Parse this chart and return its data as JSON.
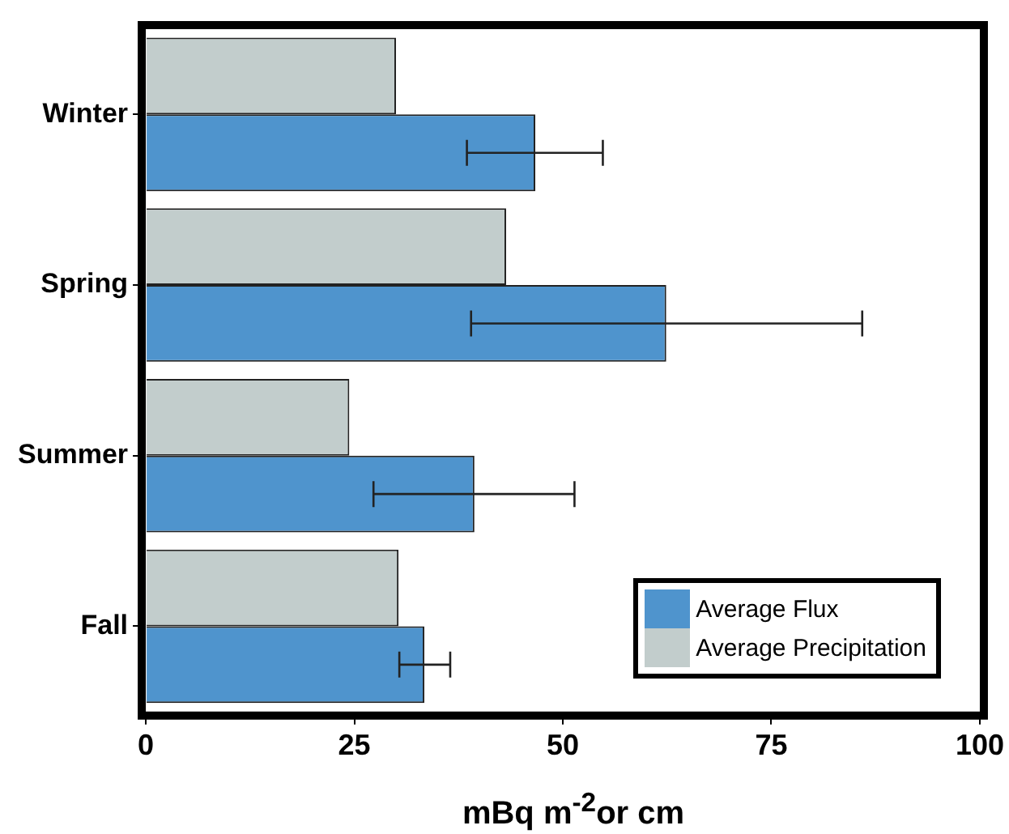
{
  "chart_data": {
    "type": "bar",
    "orientation": "horizontal",
    "xlabel": "mBq m$^{-2}$or cm",
    "categories": [
      "Winter",
      "Spring",
      "Summer",
      "Fall"
    ],
    "series": [
      {
        "name": "Average Flux",
        "color": "#4f94cd",
        "values": [
          46.7,
          62.4,
          39.4,
          33.4
        ],
        "errors": [
          [
            38.5,
            54.8
          ],
          [
            39.0,
            85.9
          ],
          [
            27.3,
            51.4
          ],
          [
            30.4,
            36.5
          ]
        ]
      },
      {
        "name": "Average Precipitation",
        "color": "#c2cdcc",
        "values": [
          30.0,
          43.2,
          24.4,
          30.3
        ]
      }
    ],
    "xlim": [
      0,
      100
    ],
    "xticks": [
      0,
      25,
      50,
      75,
      100
    ],
    "legend": "bottom right"
  }
}
